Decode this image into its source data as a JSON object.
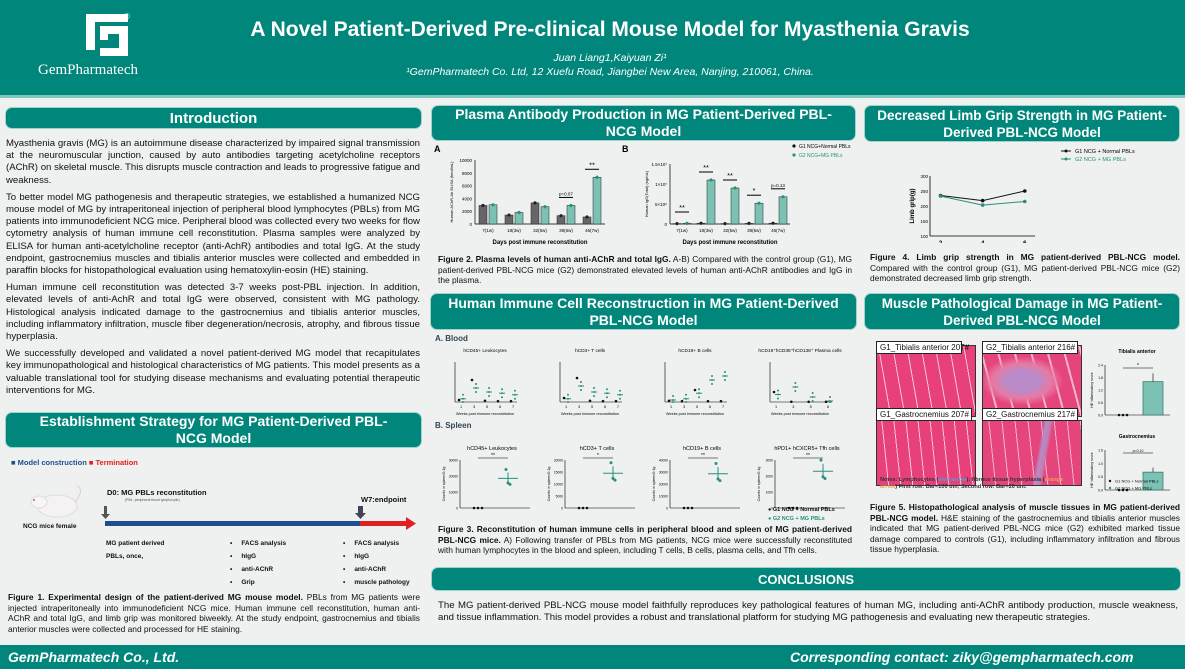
{
  "header": {
    "logo_text": "GemPharmatech",
    "title": "A Novel Patient-Derived Pre-clinical Mouse Model for Myasthenia Gravis",
    "authors": "Juan Liang1,Kaiyuan Zi¹",
    "affiliation": "¹GemPharmatech Co. Ltd, 12 Xuefu Road, Jiangbei New Area, Nanjing, 210061, China."
  },
  "colors": {
    "teal": "#00867a",
    "g1": "#111111",
    "g2": "#2a8f7f",
    "bar_g1": "#666666",
    "bar_g2": "#7cc2b4",
    "termination": "#e02020",
    "construction": "#1f4e8c"
  },
  "intro": {
    "title": "Introduction",
    "paragraphs": [
      "Myasthenia gravis (MG) is an autoimmune disease characterized by impaired signal transmission at the neuromuscular junction, caused by auto antibodies targeting acetylcholine receptors (AChR) on skeletal muscle. This disrupts muscle contraction and leads to progressive fatigue and weakness.",
      "To better model MG pathogenesis and therapeutic strategies, we established a humanized NCG mouse model of MG by intraperitoneal injection of peripheral blood lymphocytes (PBLs) from MG patients into immunodeficient NCG mice. Peripheral blood was collected every two weeks for flow cytometry analysis of human immune cell reconstitution. Plasma samples were analyzed by ELISA for human anti-acetylcholine receptor (anti-AchR) antibodies and total IgG. At the study endpoint, gastrocnemius muscles and tibialis anterior muscles were collected and embedded in paraffin blocks for histopathological evaluation using hematoxylin-eosin (HE) staining.",
      "Human immune cell reconstitution was detected 3-7 weeks post-PBL injection. In addition, elevated levels of anti-AchR and total IgG were observed, consistent with MG pathology. Histological analysis indicated damage to the gastrocnemius and tibialis anterior muscles, including inflammatory infiltration, muscle fiber degeneration/necrosis, atrophy, and fibrous tissue hyperplasia.",
      "We successfully developed and validated a novel patient-derived MG model that recapitulates key immunopathological and histological characteristics of MG patients. This model presents as a valuable translational tool for studying disease mechanisms and evaluating potential therapeutic interventions for MG."
    ]
  },
  "strategy": {
    "title": "Establishment Strategy for MG Patient-Derived PBL-NCG Model",
    "legend_construction": "Model construction",
    "legend_termination": "Termination",
    "mouse_label": "NCG mice female",
    "d0": "D0: MG PBLs reconstitution",
    "d0_note": "(PBL: peripheral blood lymphocyte)",
    "w7": "W7:endpoint",
    "inject": [
      "MG patient derived",
      "PBLs, once,"
    ],
    "biweekly": [
      "FACS analysis",
      "hIgG",
      "anti-AChR",
      "Grip"
    ],
    "endpoint": [
      "FACS analysis",
      "hIgG",
      "anti-AChR",
      "muscle pathology"
    ],
    "caption_bold": "Figure 1.  Experimental design of the patient-derived MG mouse model.",
    "caption": " PBLs from MG patients were injected intraperitoneally into immunodeficient NCG mice. Human immune cell reconstitution, human anti-AChR and total IgG, and limb grip was monitored biweekly.  At the study endpoint, gastrocnemius and tibialis anterior muscles were collected and processed for HE staining."
  },
  "plasma": {
    "title": "Plasma Antibody Production in MG Patient-Derived PBL-NCG Model",
    "caption_bold": "Figure 2. Plasma levels of human anti-AChR and total IgG.",
    "caption": " A-B) Compared with the control group (G1), MG patient-derived PBL-NCG mice (G2) demonstrated elevated levels of human anti-AChR antibodies and IgG in the plasma."
  },
  "grip": {
    "title": "Decreased Limb Grip Strength in MG Patient-Derived PBL-NCG Model",
    "caption_bold": "Figure 4. Limb grip strength in MG patient-derived PBL-NCG model.",
    "caption": " Compared with the control group (G1), MG patient-derived PBL-NCG mice (G2) demonstrated decreased limb grip strength."
  },
  "immune": {
    "title": "Human Immune Cell Reconstruction in MG Patient-Derived PBL-NCG Model",
    "blood_label": "A. Blood",
    "spleen_label": "B. Spleen",
    "legend_g1": "G1 NCG + Normal PBLs",
    "legend_g2": "G2 NCG + MG PBLs",
    "caption_bold": "Figure 3. Reconstitution of human immune cells in peripheral blood and spleen of MG patient-derived PBL-NCG mice.",
    "caption": "  A) Following transfer of PBLs from MG patients, NCG mice were successfully reconstituted with human lymphocytes in the blood and spleen, including T cells, B cells, plasma cells, and Tfh cells."
  },
  "muscle": {
    "title": "Muscle Pathological Damage in MG Patient-Derived PBL-NCG Model",
    "panels": [
      "G1_Tibialis anterior 207#",
      "G2_Tibialis anterior 216#",
      "G1_Gastrocnemius 207#",
      "G2_Gastrocnemius 217#"
    ],
    "notes_a": "Notes: Lymphocytes (",
    "notes_blue": "blue arrow",
    "notes_b": "); fibrous tissue hyperplasia (",
    "notes_orange": "orange arrow",
    "notes_c": ") First row: Bar=100 um; Second row: Bar=20 um.",
    "caption_bold": "Figure 5. Histopathological analysis of muscle tissues in MG patient-derived PBL-NCG model.",
    "caption": " H&E staining of the gastrocnemius and tibialis anterior muscles indicated that MG patient-derived PBL-NCG mice (G2) exhibited marked tissue damage compared to controls (G1), including inflammatory infiltration and fibrous tissue hyperplasia."
  },
  "conclusions": {
    "title": "CONCLUSIONS",
    "text": "The MG patient-derived PBL-NCG mouse model faithfully reproduces key pathological features of human MG, including anti-AChR antibody production, muscle weakness, and tissue inflammation. This model provides a robust and translational platform for studying MG pathogenesis and evaluating new therapeutic strategies."
  },
  "footer": {
    "company": "GemPharmatech Co., Ltd.",
    "contact": "Corresponding contact: ziky@gempharmatech.com"
  },
  "chart_data": [
    {
      "id": "fig2a",
      "type": "bar",
      "panel": "A",
      "categories": [
        "7(1w)",
        "18(3w)",
        "32(5w)",
        "39(6w)",
        "46(7w)"
      ],
      "ylabel": "Human AChR-Ab ELISA (fmol/mL)",
      "xlabel": "Days post immune reconstitution",
      "ylim": [
        0,
        10000
      ],
      "yticks": [
        0,
        2000,
        4000,
        6000,
        8000,
        10000
      ],
      "ytick_labels": [
        "0",
        "2000",
        "4000",
        "6000",
        "8000",
        "10000"
      ],
      "series": [
        {
          "name": "G1 NCG+Normal PBLs",
          "values": [
            2900,
            1400,
            3300,
            1300,
            1100
          ]
        },
        {
          "name": "G2 NCG+MG PBLs",
          "values": [
            3000,
            1800,
            2700,
            2900,
            7300
          ]
        }
      ],
      "annotations": [
        "",
        "",
        "",
        "p=0.07",
        "**"
      ]
    },
    {
      "id": "fig2b",
      "type": "bar",
      "panel": "B",
      "categories": [
        "7(1w)",
        "18(3w)",
        "32(5w)",
        "39(6w)",
        "46(7w)"
      ],
      "ylabel": "Human IgG(Total) (ng/mL)",
      "xlabel": "Days post immune reconstitution",
      "ylim": [
        0,
        15000000
      ],
      "yticks": [
        0,
        5000000,
        10000000,
        15000000
      ],
      "ytick_labels": [
        "0",
        "5×10⁶",
        "1×10⁷",
        "1.5×10⁷"
      ],
      "series": [
        {
          "name": "G1 NCG+Normal PBLs",
          "values": [
            100000,
            200000,
            100000,
            150000,
            200000
          ]
        },
        {
          "name": "G2 NCG+MG PBLs",
          "values": [
            150000,
            11000000,
            9000000,
            5200000,
            6800000
          ]
        }
      ],
      "annotations": [
        "**",
        "**",
        "**",
        "*",
        "p=0.13"
      ]
    },
    {
      "id": "fig4",
      "type": "line",
      "x": [
        2,
        4,
        6
      ],
      "xlabel": "Weeks post immune reconstitution",
      "ylabel": "Limb grip(g)",
      "ylim": [
        100,
        300
      ],
      "yticks": [
        100,
        150,
        200,
        250,
        300
      ],
      "series": [
        {
          "name": "G1 NCG + Normal PBLs",
          "values": [
            235,
            218,
            250
          ]
        },
        {
          "name": "G2 NCG + MG PBLs",
          "values": [
            233,
            203,
            215
          ]
        }
      ],
      "legend": "top-right"
    },
    {
      "id": "fig3-blood",
      "type": "scatter",
      "xlabel": "Weeks post immune reconstitution",
      "panels": [
        {
          "title": "hCD45+ Leukocytes",
          "x": [
            1,
            3,
            5,
            6,
            7
          ],
          "ylim": [
            0,
            100
          ],
          "g1": [
            5,
            55,
            3,
            2,
            2
          ],
          "g2": [
            8,
            35,
            25,
            22,
            18
          ]
        },
        {
          "title": "hCD3+ T cells",
          "x": [
            1,
            3,
            5,
            6,
            7
          ],
          "ylim": [
            0,
            100
          ],
          "g1": [
            10,
            60,
            3,
            2,
            2
          ],
          "g2": [
            8,
            40,
            25,
            22,
            18
          ]
        },
        {
          "title": "hCD19+ B cells",
          "x": [
            1,
            3,
            5,
            6,
            7
          ],
          "ylim": [
            0,
            100
          ],
          "g1": [
            3,
            2,
            30,
            2,
            2
          ],
          "g2": [
            5,
            8,
            22,
            55,
            65
          ]
        },
        {
          "title": "hCD19⁺hCD38⁺hCD138⁺ Plasma cells",
          "x": [
            1,
            3,
            5,
            6
          ],
          "ylim": [
            0,
            800
          ],
          "g1": [
            200,
            5,
            5,
            5
          ],
          "g2": [
            150,
            300,
            100,
            20
          ]
        }
      ]
    },
    {
      "id": "fig3-spleen",
      "type": "scatter",
      "ylabel": "Counts in spleen/0.1g",
      "categories": [
        "G1",
        "G2"
      ],
      "panels": [
        {
          "title": "hCD45+ Leukocytes",
          "ylim": [
            0,
            30000
          ],
          "yticks": [
            0,
            10000,
            20000,
            30000
          ],
          "g1": 0,
          "g2": 18500,
          "sig": "**"
        },
        {
          "title": "hCD3+ T cells",
          "ylim": [
            0,
            20000
          ],
          "yticks": [
            0,
            5000,
            10000,
            15000,
            20000
          ],
          "g1": 0,
          "g2": 14500,
          "sig": "*"
        },
        {
          "title": "hCD19+ B cells",
          "ylim": [
            0,
            40000
          ],
          "yticks": [
            0,
            10000,
            20000,
            30000,
            40000
          ],
          "g1": 0,
          "g2": 28500,
          "sig": "**"
        },
        {
          "title": "hPD1+ hCXCR5+ Tfh cells",
          "ylim": [
            0,
            3000
          ],
          "yticks": [
            0,
            1000,
            2000,
            3000
          ],
          "g1": 0,
          "g2": 2300,
          "sig": "**"
        }
      ]
    },
    {
      "id": "fig5",
      "type": "bar",
      "ylabel": "HE inflammatory score",
      "categories": [
        "G1",
        "G2"
      ],
      "panels": [
        {
          "title": "Tibialis anterior",
          "ylim": [
            0,
            2.4
          ],
          "yticks": [
            0,
            0.6,
            1.2,
            1.8,
            2.4
          ],
          "values": [
            0,
            1.6
          ],
          "sig": "*"
        },
        {
          "title": "Gastrocnemius",
          "ylim": [
            0,
            1.5
          ],
          "yticks": [
            0,
            0.5,
            1.0,
            1.5
          ],
          "values": [
            0,
            0.67
          ],
          "sig": "p=0.10"
        }
      ],
      "legend": [
        "G1 NCG + Normal PBLs",
        "G2 NCG + MG PBLs"
      ]
    }
  ]
}
